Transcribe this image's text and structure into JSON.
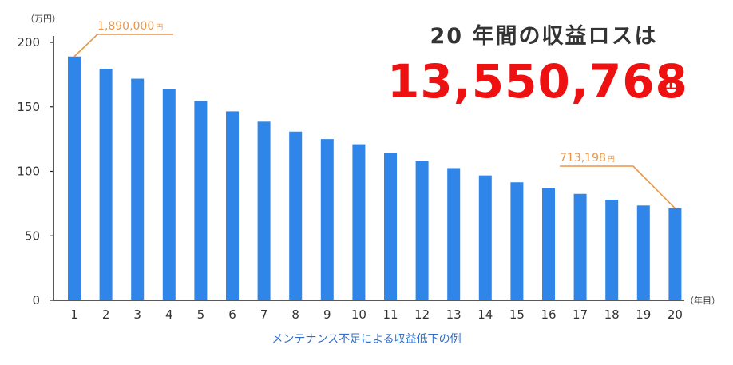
{
  "colors": {
    "bar": "#2f86e8",
    "axis": "#222222",
    "callout": "#e8964a",
    "total": "#ee1111",
    "caption": "#2f6fc9",
    "text": "#333333"
  },
  "chart_data": {
    "type": "bar",
    "ylabel": "（万円）",
    "xlabel": "（年目）",
    "ylim": [
      0,
      200
    ],
    "yticks": [
      0,
      50,
      100,
      150,
      200
    ],
    "grid": false,
    "categories": [
      "1",
      "2",
      "3",
      "4",
      "5",
      "6",
      "7",
      "8",
      "9",
      "10",
      "11",
      "12",
      "13",
      "14",
      "15",
      "16",
      "17",
      "18",
      "19",
      "20"
    ],
    "values": [
      189,
      179.5,
      171.8,
      163.5,
      154.5,
      146.5,
      138.5,
      130.8,
      125,
      121,
      114,
      108,
      102.5,
      96.8,
      91.5,
      87,
      82.5,
      78,
      73.5,
      71.3
    ],
    "annotations": [
      {
        "text": "1,890,000",
        "unit": "円",
        "category": "1"
      },
      {
        "text": "713,198",
        "unit": "円",
        "category": "20"
      }
    ],
    "caption": "メンテナンス不足による収益低下の例"
  },
  "headline": {
    "title": "20 年間の収益ロスは",
    "total": "13,550,768",
    "unit": "円"
  }
}
